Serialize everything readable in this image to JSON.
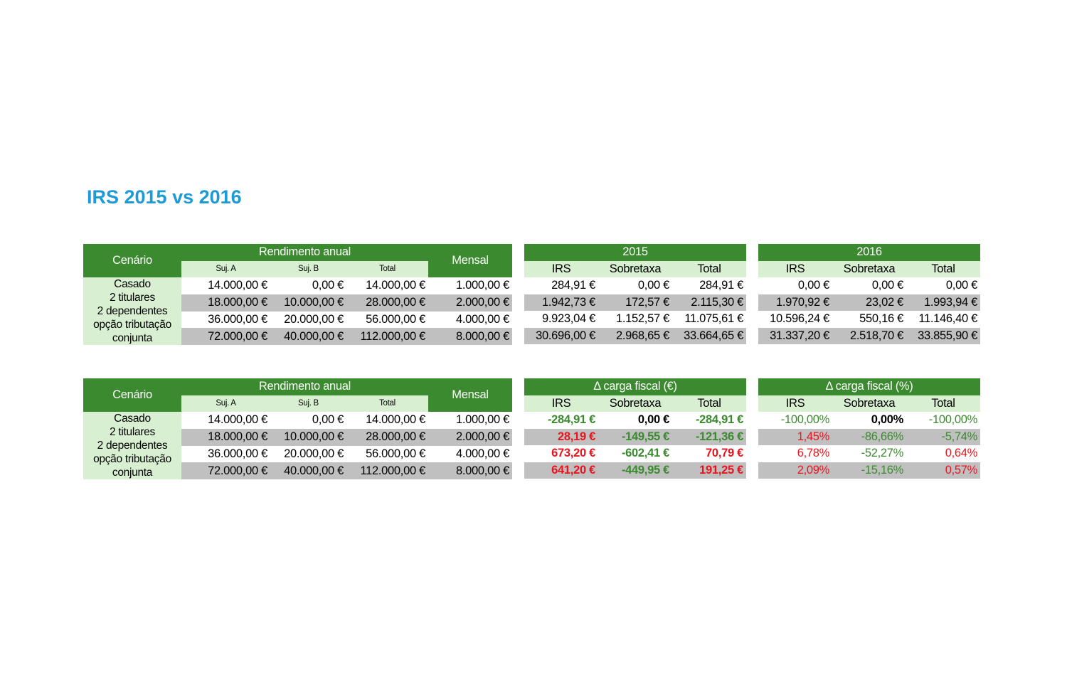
{
  "title": "IRS 2015 vs 2016",
  "colors": {
    "header_green": "#3b8a2f",
    "light_green": "#d8efd2",
    "row_grey": "#c0c0c0",
    "title_blue": "#1e9ad6",
    "negative_red": "#e8141e"
  },
  "income": {
    "cenario_label": "Cenário",
    "rendimento_label": "Rendimento anual",
    "mensal_label": "Mensal",
    "sub_headers": [
      "Suj. A",
      "Suj. B",
      "Total"
    ],
    "cenario_lines": [
      "Casado",
      "2 titulares",
      "2 dependentes",
      "opção tributação",
      "conjunta"
    ],
    "rows": [
      [
        "14.000,00 €",
        "0,00 €",
        "14.000,00 €",
        "1.000,00 €"
      ],
      [
        "18.000,00 €",
        "10.000,00 €",
        "28.000,00 €",
        "2.000,00 €"
      ],
      [
        "36.000,00 €",
        "20.000,00 €",
        "56.000,00 €",
        "4.000,00 €"
      ],
      [
        "72.000,00 €",
        "40.000,00 €",
        "112.000,00 €",
        "8.000,00 €"
      ]
    ]
  },
  "tax_headers": [
    "IRS",
    "Sobretaxa",
    "Total"
  ],
  "y2015": {
    "title": "2015",
    "rows": [
      [
        "284,91 €",
        "0,00 €",
        "284,91 €"
      ],
      [
        "1.942,73 €",
        "172,57 €",
        "2.115,30 €"
      ],
      [
        "9.923,04 €",
        "1.152,57 €",
        "11.075,61 €"
      ],
      [
        "30.696,00 €",
        "2.968,65 €",
        "33.664,65 €"
      ]
    ]
  },
  "y2016": {
    "title": "2016",
    "rows": [
      [
        "0,00 €",
        "0,00 €",
        "0,00 €"
      ],
      [
        "1.970,92 €",
        "23,02 €",
        "1.993,94 €"
      ],
      [
        "10.596,24 €",
        "550,16 €",
        "11.146,40 €"
      ],
      [
        "31.337,20 €",
        "2.518,70 €",
        "33.855,90 €"
      ]
    ]
  },
  "delta_eur": {
    "title": "Δ carga fiscal (€)",
    "rows": [
      [
        "-284,91 €",
        "0,00 €",
        "-284,91 €"
      ],
      [
        "28,19 €",
        "-149,55 €",
        "-121,36 €"
      ],
      [
        "673,20 €",
        "-602,41 €",
        "70,79 €"
      ],
      [
        "641,20 €",
        "-449,95 €",
        "191,25 €"
      ]
    ]
  },
  "delta_pct": {
    "title": "Δ carga fiscal (%)",
    "rows": [
      [
        "-100,00%",
        "0,00%",
        "-100,00%"
      ],
      [
        "1,45%",
        "-86,66%",
        "-5,74%"
      ],
      [
        "6,78%",
        "-52,27%",
        "0,64%"
      ],
      [
        "2,09%",
        "-15,16%",
        "0,57%"
      ]
    ]
  }
}
